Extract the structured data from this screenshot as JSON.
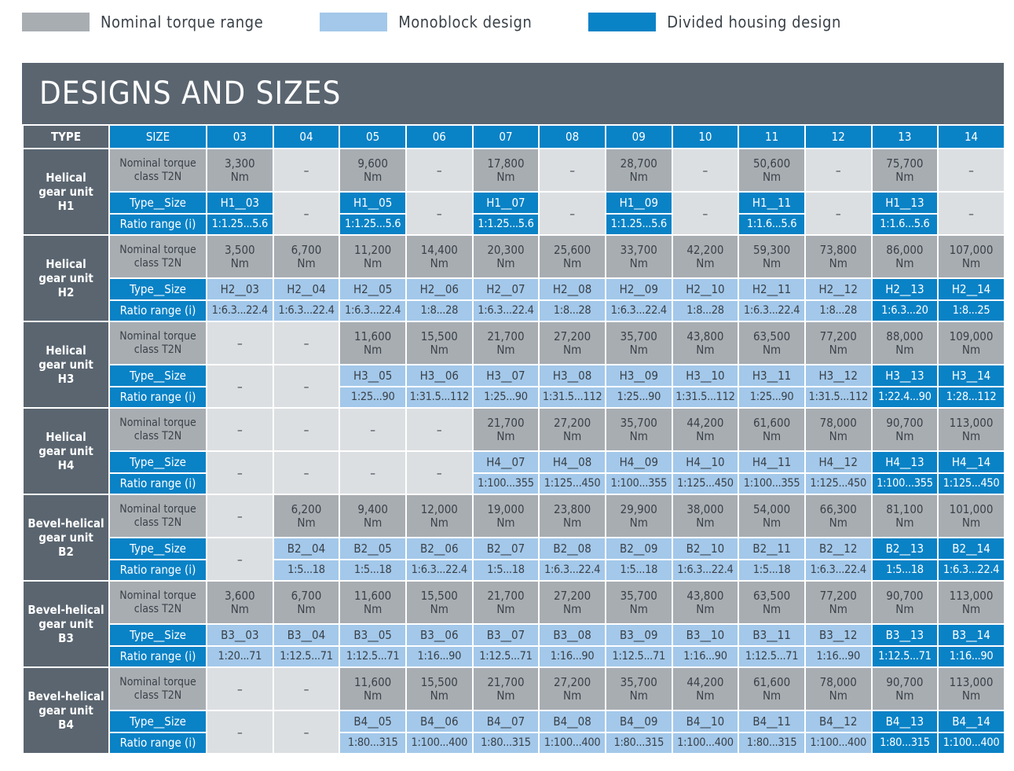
{
  "legend": [
    {
      "label": "Nominal torque range",
      "color": "#a8adb2"
    },
    {
      "label": "Monoblock design",
      "color": "#a3c8ea"
    },
    {
      "label": "Divided housing design",
      "color": "#0a82c6"
    }
  ],
  "title": "DESIGNS AND SIZES",
  "header": {
    "type": "TYPE",
    "size": "SIZE",
    "sizes": [
      "03",
      "04",
      "05",
      "06",
      "07",
      "08",
      "09",
      "10",
      "11",
      "12",
      "13",
      "14"
    ]
  },
  "row_labels": {
    "nominal": [
      "Nominal torque",
      "class T2N"
    ],
    "type_size": "Type__Size",
    "ratio": "Ratio range (i)"
  },
  "groups": [
    {
      "name": [
        "Helical",
        "gear unit",
        "H1"
      ],
      "nominal": [
        [
          "3,300",
          "Nm"
        ],
        null,
        [
          "9,600",
          "Nm"
        ],
        null,
        [
          "17,800",
          "Nm"
        ],
        null,
        [
          "28,700",
          "Nm"
        ],
        null,
        [
          "50,600",
          "Nm"
        ],
        null,
        [
          "75,700",
          "Nm"
        ],
        null
      ],
      "types": [
        {
          "t": "H1__03",
          "r": "1:1.25...5.6",
          "d": "divided"
        },
        null,
        {
          "t": "H1__05",
          "r": "1:1.25...5.6",
          "d": "divided"
        },
        null,
        {
          "t": "H1__07",
          "r": "1:1.25...5.6",
          "d": "divided"
        },
        null,
        {
          "t": "H1__09",
          "r": "1:1.25...5.6",
          "d": "divided"
        },
        null,
        {
          "t": "H1__11",
          "r": "1:1.6...5.6",
          "d": "divided"
        },
        null,
        {
          "t": "H1__13",
          "r": "1:1.6...5.6",
          "d": "divided"
        },
        null
      ]
    },
    {
      "name": [
        "Helical",
        "gear unit",
        "H2"
      ],
      "nominal": [
        [
          "3,500",
          "Nm"
        ],
        [
          "6,700",
          "Nm"
        ],
        [
          "11,200",
          "Nm"
        ],
        [
          "14,400",
          "Nm"
        ],
        [
          "20,300",
          "Nm"
        ],
        [
          "25,600",
          "Nm"
        ],
        [
          "33,700",
          "Nm"
        ],
        [
          "42,200",
          "Nm"
        ],
        [
          "59,300",
          "Nm"
        ],
        [
          "73,800",
          "Nm"
        ],
        [
          "86,000",
          "Nm"
        ],
        [
          "107,000",
          "Nm"
        ]
      ],
      "types": [
        {
          "t": "H2__03",
          "r": "1:6.3...22.4",
          "d": "mono"
        },
        {
          "t": "H2__04",
          "r": "1:6.3...22.4",
          "d": "mono"
        },
        {
          "t": "H2__05",
          "r": "1:6.3...22.4",
          "d": "mono"
        },
        {
          "t": "H2__06",
          "r": "1:8...28",
          "d": "mono"
        },
        {
          "t": "H2__07",
          "r": "1:6.3...22.4",
          "d": "mono"
        },
        {
          "t": "H2__08",
          "r": "1:8...28",
          "d": "mono"
        },
        {
          "t": "H2__09",
          "r": "1:6.3...22.4",
          "d": "mono"
        },
        {
          "t": "H2__10",
          "r": "1:8...28",
          "d": "mono"
        },
        {
          "t": "H2__11",
          "r": "1:6.3...22.4",
          "d": "mono"
        },
        {
          "t": "H2__12",
          "r": "1:8...28",
          "d": "mono"
        },
        {
          "t": "H2__13",
          "r": "1:6.3...20",
          "d": "divided"
        },
        {
          "t": "H2__14",
          "r": "1:8...25",
          "d": "divided"
        }
      ]
    },
    {
      "name": [
        "Helical",
        "gear unit",
        "H3"
      ],
      "nominal": [
        null,
        null,
        [
          "11,600",
          "Nm"
        ],
        [
          "15,500",
          "Nm"
        ],
        [
          "21,700",
          "Nm"
        ],
        [
          "27,200",
          "Nm"
        ],
        [
          "35,700",
          "Nm"
        ],
        [
          "43,800",
          "Nm"
        ],
        [
          "63,500",
          "Nm"
        ],
        [
          "77,200",
          "Nm"
        ],
        [
          "88,000",
          "Nm"
        ],
        [
          "109,000",
          "Nm"
        ]
      ],
      "types": [
        null,
        null,
        {
          "t": "H3__05",
          "r": "1:25...90",
          "d": "mono"
        },
        {
          "t": "H3__06",
          "r": "1:31.5...112",
          "d": "mono"
        },
        {
          "t": "H3__07",
          "r": "1:25...90",
          "d": "mono"
        },
        {
          "t": "H3__08",
          "r": "1:31.5...112",
          "d": "mono"
        },
        {
          "t": "H3__09",
          "r": "1:25...90",
          "d": "mono"
        },
        {
          "t": "H3__10",
          "r": "1:31.5...112",
          "d": "mono"
        },
        {
          "t": "H3__11",
          "r": "1:25...90",
          "d": "mono"
        },
        {
          "t": "H3__12",
          "r": "1:31.5...112",
          "d": "mono"
        },
        {
          "t": "H3__13",
          "r": "1:22.4...90",
          "d": "divided"
        },
        {
          "t": "H3__14",
          "r": "1:28...112",
          "d": "divided"
        }
      ]
    },
    {
      "name": [
        "Helical",
        "gear unit",
        "H4"
      ],
      "nominal": [
        null,
        null,
        null,
        null,
        [
          "21,700",
          "Nm"
        ],
        [
          "27,200",
          "Nm"
        ],
        [
          "35,700",
          "Nm"
        ],
        [
          "44,200",
          "Nm"
        ],
        [
          "61,600",
          "Nm"
        ],
        [
          "78,000",
          "Nm"
        ],
        [
          "90,700",
          "Nm"
        ],
        [
          "113,000",
          "Nm"
        ]
      ],
      "types": [
        null,
        null,
        null,
        null,
        {
          "t": "H4__07",
          "r": "1:100...355",
          "d": "mono"
        },
        {
          "t": "H4__08",
          "r": "1:125...450",
          "d": "mono"
        },
        {
          "t": "H4__09",
          "r": "1:100...355",
          "d": "mono"
        },
        {
          "t": "H4__10",
          "r": "1:125...450",
          "d": "mono"
        },
        {
          "t": "H4__11",
          "r": "1:100...355",
          "d": "mono"
        },
        {
          "t": "H4__12",
          "r": "1:125...450",
          "d": "mono"
        },
        {
          "t": "H4__13",
          "r": "1:100...355",
          "d": "divided"
        },
        {
          "t": "H4__14",
          "r": "1:125...450",
          "d": "divided"
        }
      ]
    },
    {
      "name": [
        "Bevel-helical",
        "gear unit",
        "B2"
      ],
      "nominal": [
        null,
        [
          "6,200",
          "Nm"
        ],
        [
          "9,400",
          "Nm"
        ],
        [
          "12,000",
          "Nm"
        ],
        [
          "19,000",
          "Nm"
        ],
        [
          "23,800",
          "Nm"
        ],
        [
          "29,900",
          "Nm"
        ],
        [
          "38,000",
          "Nm"
        ],
        [
          "54,000",
          "Nm"
        ],
        [
          "66,300",
          "Nm"
        ],
        [
          "81,100",
          "Nm"
        ],
        [
          "101,000",
          "Nm"
        ]
      ],
      "types": [
        null,
        {
          "t": "B2__04",
          "r": "1:5...18",
          "d": "mono"
        },
        {
          "t": "B2__05",
          "r": "1:5...18",
          "d": "mono"
        },
        {
          "t": "B2__06",
          "r": "1:6.3...22.4",
          "d": "mono"
        },
        {
          "t": "B2__07",
          "r": "1:5...18",
          "d": "mono"
        },
        {
          "t": "B2__08",
          "r": "1:6.3...22.4",
          "d": "mono"
        },
        {
          "t": "B2__09",
          "r": "1:5...18",
          "d": "mono"
        },
        {
          "t": "B2__10",
          "r": "1:6.3...22.4",
          "d": "mono"
        },
        {
          "t": "B2__11",
          "r": "1:5...18",
          "d": "mono"
        },
        {
          "t": "B2__12",
          "r": "1:6.3...22.4",
          "d": "mono"
        },
        {
          "t": "B2__13",
          "r": "1:5...18",
          "d": "divided"
        },
        {
          "t": "B2__14",
          "r": "1:6.3...22.4",
          "d": "divided"
        }
      ]
    },
    {
      "name": [
        "Bevel-helical",
        "gear unit",
        "B3"
      ],
      "nominal": [
        [
          "3,600",
          "Nm"
        ],
        [
          "6,700",
          "Nm"
        ],
        [
          "11,600",
          "Nm"
        ],
        [
          "15,500",
          "Nm"
        ],
        [
          "21,700",
          "Nm"
        ],
        [
          "27,200",
          "Nm"
        ],
        [
          "35,700",
          "Nm"
        ],
        [
          "43,800",
          "Nm"
        ],
        [
          "63,500",
          "Nm"
        ],
        [
          "77,200",
          "Nm"
        ],
        [
          "90,700",
          "Nm"
        ],
        [
          "113,000",
          "Nm"
        ]
      ],
      "types": [
        {
          "t": "B3__03",
          "r": "1:20...71",
          "d": "mono"
        },
        {
          "t": "B3__04",
          "r": "1:12.5...71",
          "d": "mono"
        },
        {
          "t": "B3__05",
          "r": "1:12.5...71",
          "d": "mono"
        },
        {
          "t": "B3__06",
          "r": "1:16...90",
          "d": "mono"
        },
        {
          "t": "B3__07",
          "r": "1:12.5...71",
          "d": "mono"
        },
        {
          "t": "B3__08",
          "r": "1:16...90",
          "d": "mono"
        },
        {
          "t": "B3__09",
          "r": "1:12.5...71",
          "d": "mono"
        },
        {
          "t": "B3__10",
          "r": "1:16...90",
          "d": "mono"
        },
        {
          "t": "B3__11",
          "r": "1:12.5...71",
          "d": "mono"
        },
        {
          "t": "B3__12",
          "r": "1:16...90",
          "d": "mono"
        },
        {
          "t": "B3__13",
          "r": "1:12.5...71",
          "d": "divided"
        },
        {
          "t": "B3__14",
          "r": "1:16...90",
          "d": "divided"
        }
      ]
    },
    {
      "name": [
        "Bevel-helical",
        "gear unit",
        "B4"
      ],
      "nominal": [
        null,
        null,
        [
          "11,600",
          "Nm"
        ],
        [
          "15,500",
          "Nm"
        ],
        [
          "21,700",
          "Nm"
        ],
        [
          "27,200",
          "Nm"
        ],
        [
          "35,700",
          "Nm"
        ],
        [
          "44,200",
          "Nm"
        ],
        [
          "61,600",
          "Nm"
        ],
        [
          "78,000",
          "Nm"
        ],
        [
          "90,700",
          "Nm"
        ],
        [
          "113,000",
          "Nm"
        ]
      ],
      "types": [
        null,
        null,
        {
          "t": "B4__05",
          "r": "1:80...315",
          "d": "mono"
        },
        {
          "t": "B4__06",
          "r": "1:100...400",
          "d": "mono"
        },
        {
          "t": "B4__07",
          "r": "1:80...315",
          "d": "mono"
        },
        {
          "t": "B4__08",
          "r": "1:100...400",
          "d": "mono"
        },
        {
          "t": "B4__09",
          "r": "1:80...315",
          "d": "mono"
        },
        {
          "t": "B4__10",
          "r": "1:100...400",
          "d": "mono"
        },
        {
          "t": "B4__11",
          "r": "1:80...315",
          "d": "mono"
        },
        {
          "t": "B4__12",
          "r": "1:100...400",
          "d": "mono"
        },
        {
          "t": "B4__13",
          "r": "1:80...315",
          "d": "divided"
        },
        {
          "t": "B4__14",
          "r": "1:100...400",
          "d": "divided"
        }
      ]
    }
  ],
  "empty_mark": "–"
}
